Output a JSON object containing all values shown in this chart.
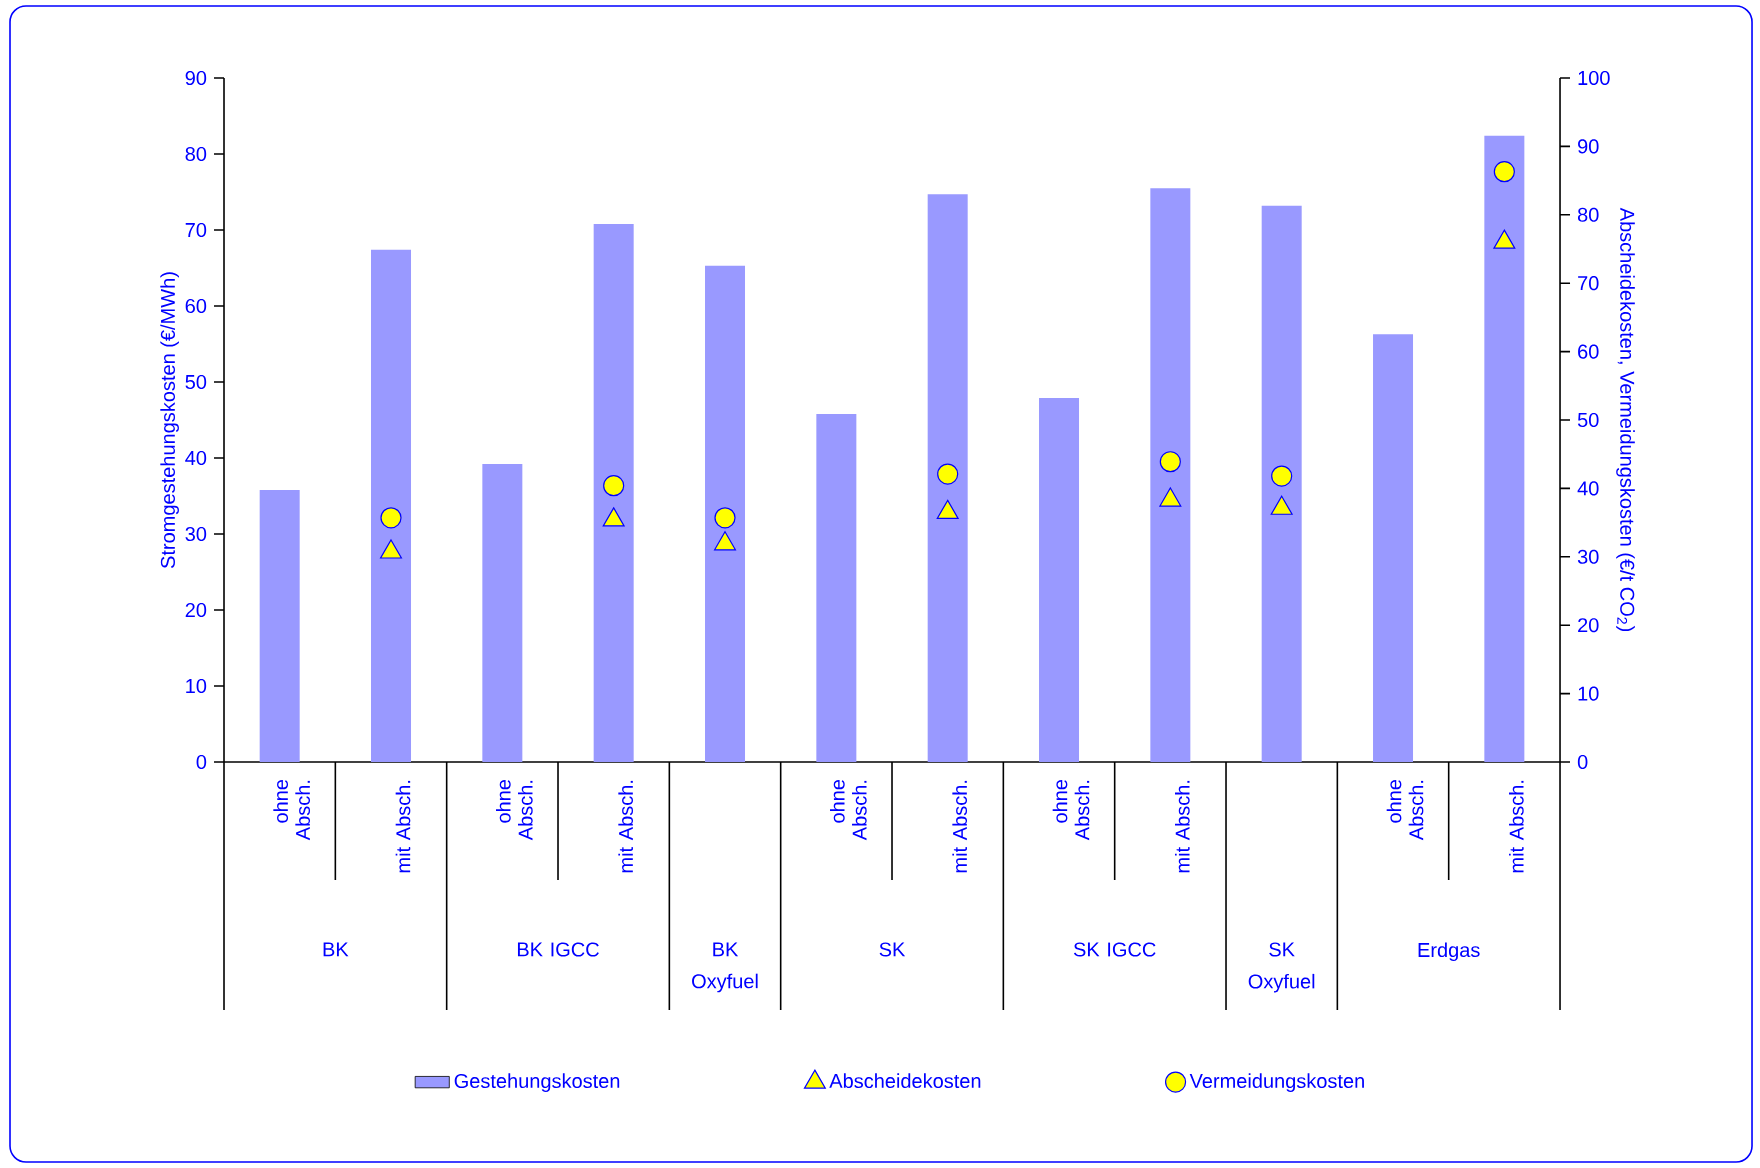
{
  "chart_data": {
    "type": "bar",
    "categories": [
      "ohne Absch.",
      "mit Absch.",
      "ohne Absch.",
      "mit Absch.",
      null,
      "ohne Absch.",
      "mit Absch.",
      "ohne Absch.",
      "mit Absch.",
      null,
      "ohne Absch.",
      "mit Absch."
    ],
    "series": [
      {
        "name": "Gestehungskosten",
        "color": "#9999ff",
        "values": [
          35.8,
          67.4,
          39.2,
          70.8,
          65.3,
          45.8,
          74.7,
          47.9,
          75.5,
          73.2,
          56.3,
          82.4
        ]
      },
      {
        "name": "Abscheidekosten",
        "type": "scatter",
        "marker": "triangle",
        "axis": "y2",
        "color": "#ffff00",
        "values": [
          null,
          30.7,
          null,
          35.4,
          31.9,
          null,
          36.5,
          null,
          38.3,
          37.1,
          null,
          76.0
        ]
      },
      {
        "name": "Vermeidungskosten",
        "type": "scatter",
        "marker": "circle",
        "axis": "y2",
        "color": "#ffff00",
        "values": [
          null,
          35.7,
          null,
          40.4,
          35.7,
          null,
          42.1,
          null,
          43.9,
          41.8,
          null,
          86.3
        ]
      }
    ],
    "ylabel": "Stromgestehungskosten (€/MWh)",
    "y2label": "Abscheidekosten, Vermeidungskosten (€/t CO$_{2}$)",
    "ylim": [
      0,
      90
    ],
    "yticks": [
      0,
      10,
      20,
      30,
      40,
      50,
      60,
      70,
      80,
      90
    ],
    "y2lim": [
      0,
      100
    ],
    "y2ticks": [
      0,
      10,
      20,
      30,
      40,
      50,
      60,
      70,
      80,
      90,
      100
    ],
    "annotations": [
      "BK",
      "BK IGCC",
      "BK Oxyfuel",
      "SK",
      "SK IGCC",
      "SK Oxyfuel",
      "Erdgas"
    ],
    "grid": false,
    "legend": "bottom"
  }
}
